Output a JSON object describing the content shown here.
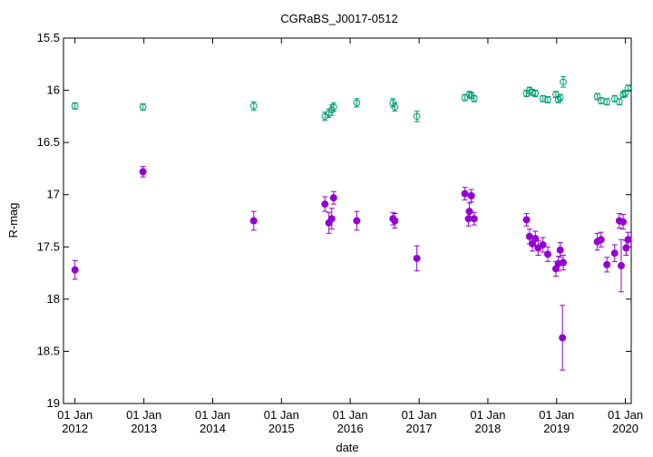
{
  "chart_data": {
    "type": "scatter",
    "title": "CGRaBS_J0017-0512",
    "xlabel": "date",
    "ylabel": "R-mag",
    "xlim": [
      "2011-11-01",
      "2020-02-01"
    ],
    "ylim": [
      15.5,
      19
    ],
    "y_inverted": true,
    "grid": false,
    "x_ticks": [
      {
        "date": "2012-01-01",
        "line1": "01 Jan",
        "line2": "2012"
      },
      {
        "date": "2013-01-01",
        "line1": "01 Jan",
        "line2": "2013"
      },
      {
        "date": "2014-01-01",
        "line1": "01 Jan",
        "line2": "2014"
      },
      {
        "date": "2015-01-01",
        "line1": "01 Jan",
        "line2": "2015"
      },
      {
        "date": "2016-01-01",
        "line1": "01 Jan",
        "line2": "2016"
      },
      {
        "date": "2017-01-01",
        "line1": "01 Jan",
        "line2": "2017"
      },
      {
        "date": "2018-01-01",
        "line1": "01 Jan",
        "line2": "2018"
      },
      {
        "date": "2019-01-01",
        "line1": "01 Jan",
        "line2": "2019"
      },
      {
        "date": "2020-01-01",
        "line1": "01 Jan",
        "line2": "2020"
      }
    ],
    "y_ticks": [
      "15.5",
      "16",
      "16.5",
      "17",
      "17.5",
      "18",
      "18.5",
      "19"
    ],
    "series": [
      {
        "marker": "open-circle",
        "color": "#009e73",
        "points": [
          {
            "x": "2012-01-01",
            "y": 16.15,
            "err": 0.03
          },
          {
            "x": "2012-12-27",
            "y": 16.16,
            "err": 0.03
          },
          {
            "x": "2014-08-07",
            "y": 16.15,
            "err": 0.04
          },
          {
            "x": "2015-08-20",
            "y": 16.25,
            "err": 0.04
          },
          {
            "x": "2015-09-10",
            "y": 16.22,
            "err": 0.04
          },
          {
            "x": "2015-09-25",
            "y": 16.19,
            "err": 0.05
          },
          {
            "x": "2015-10-05",
            "y": 16.16,
            "err": 0.04
          },
          {
            "x": "2016-02-05",
            "y": 16.12,
            "err": 0.04
          },
          {
            "x": "2016-08-15",
            "y": 16.12,
            "err": 0.04
          },
          {
            "x": "2016-08-25",
            "y": 16.16,
            "err": 0.04
          },
          {
            "x": "2016-12-20",
            "y": 16.25,
            "err": 0.05
          },
          {
            "x": "2017-09-01",
            "y": 16.07,
            "err": 0.03
          },
          {
            "x": "2017-09-25",
            "y": 16.04,
            "err": 0.03
          },
          {
            "x": "2017-10-05",
            "y": 16.05,
            "err": 0.03
          },
          {
            "x": "2017-10-20",
            "y": 16.08,
            "err": 0.03
          },
          {
            "x": "2018-07-25",
            "y": 16.03,
            "err": 0.03
          },
          {
            "x": "2018-08-10",
            "y": 16.0,
            "err": 0.03
          },
          {
            "x": "2018-08-25",
            "y": 16.02,
            "err": 0.03
          },
          {
            "x": "2018-09-10",
            "y": 16.03,
            "err": 0.03
          },
          {
            "x": "2018-10-20",
            "y": 16.08,
            "err": 0.03
          },
          {
            "x": "2018-11-15",
            "y": 16.09,
            "err": 0.03
          },
          {
            "x": "2018-12-28",
            "y": 16.04,
            "err": 0.03
          },
          {
            "x": "2019-01-10",
            "y": 16.09,
            "err": 0.03
          },
          {
            "x": "2019-01-20",
            "y": 16.07,
            "err": 0.03
          },
          {
            "x": "2019-02-05",
            "y": 15.92,
            "err": 0.05
          },
          {
            "x": "2019-08-05",
            "y": 16.06,
            "err": 0.03
          },
          {
            "x": "2019-08-25",
            "y": 16.1,
            "err": 0.03
          },
          {
            "x": "2019-09-25",
            "y": 16.11,
            "err": 0.03
          },
          {
            "x": "2019-11-05",
            "y": 16.08,
            "err": 0.03
          },
          {
            "x": "2019-11-30",
            "y": 16.11,
            "err": 0.03
          },
          {
            "x": "2019-12-20",
            "y": 16.04,
            "err": 0.03
          },
          {
            "x": "2019-12-30",
            "y": 16.03,
            "err": 0.03
          },
          {
            "x": "2020-01-15",
            "y": 15.98,
            "err": 0.03
          }
        ]
      },
      {
        "marker": "filled-circle",
        "color": "#9400d3",
        "points": [
          {
            "x": "2012-01-01",
            "y": 17.72,
            "err": 0.09
          },
          {
            "x": "2012-12-27",
            "y": 16.78,
            "err": 0.05
          },
          {
            "x": "2014-08-07",
            "y": 17.25,
            "err": 0.09
          },
          {
            "x": "2015-08-20",
            "y": 17.09,
            "err": 0.07
          },
          {
            "x": "2015-09-10",
            "y": 17.27,
            "err": 0.1
          },
          {
            "x": "2015-09-25",
            "y": 17.23,
            "err": 0.1
          },
          {
            "x": "2015-10-05",
            "y": 17.03,
            "err": 0.06
          },
          {
            "x": "2016-02-05",
            "y": 17.25,
            "err": 0.09
          },
          {
            "x": "2016-08-15",
            "y": 17.23,
            "err": 0.06
          },
          {
            "x": "2016-08-25",
            "y": 17.25,
            "err": 0.07
          },
          {
            "x": "2016-12-20",
            "y": 17.61,
            "err": 0.12
          },
          {
            "x": "2017-09-01",
            "y": 16.99,
            "err": 0.06
          },
          {
            "x": "2017-09-20",
            "y": 17.23,
            "err": 0.07
          },
          {
            "x": "2017-09-25",
            "y": 17.16,
            "err": 0.08
          },
          {
            "x": "2017-10-05",
            "y": 17.01,
            "err": 0.06
          },
          {
            "x": "2017-10-20",
            "y": 17.23,
            "err": 0.06
          },
          {
            "x": "2018-07-25",
            "y": 17.24,
            "err": 0.06
          },
          {
            "x": "2018-08-10",
            "y": 17.4,
            "err": 0.07
          },
          {
            "x": "2018-08-25",
            "y": 17.47,
            "err": 0.07
          },
          {
            "x": "2018-09-10",
            "y": 17.42,
            "err": 0.07
          },
          {
            "x": "2018-09-25",
            "y": 17.51,
            "err": 0.07
          },
          {
            "x": "2018-10-20",
            "y": 17.48,
            "err": 0.07
          },
          {
            "x": "2018-11-15",
            "y": 17.57,
            "err": 0.07
          },
          {
            "x": "2018-12-28",
            "y": 17.71,
            "err": 0.07
          },
          {
            "x": "2019-01-10",
            "y": 17.66,
            "err": 0.07
          },
          {
            "x": "2019-01-20",
            "y": 17.53,
            "err": 0.07
          },
          {
            "x": "2019-02-05",
            "y": 17.65,
            "err": 0.07
          },
          {
            "x": "2019-02-01",
            "y": 18.37,
            "err": 0.31
          },
          {
            "x": "2019-08-05",
            "y": 17.45,
            "err": 0.08
          },
          {
            "x": "2019-08-25",
            "y": 17.43,
            "err": 0.07
          },
          {
            "x": "2019-09-25",
            "y": 17.67,
            "err": 0.07
          },
          {
            "x": "2019-11-05",
            "y": 17.56,
            "err": 0.08
          },
          {
            "x": "2019-11-30",
            "y": 17.25,
            "err": 0.07
          },
          {
            "x": "2019-12-10",
            "y": 17.68,
            "err": 0.25
          },
          {
            "x": "2019-12-20",
            "y": 17.26,
            "err": 0.07
          },
          {
            "x": "2020-01-05",
            "y": 17.51,
            "err": 0.07
          },
          {
            "x": "2020-01-15",
            "y": 17.43,
            "err": 0.07
          }
        ]
      }
    ]
  }
}
